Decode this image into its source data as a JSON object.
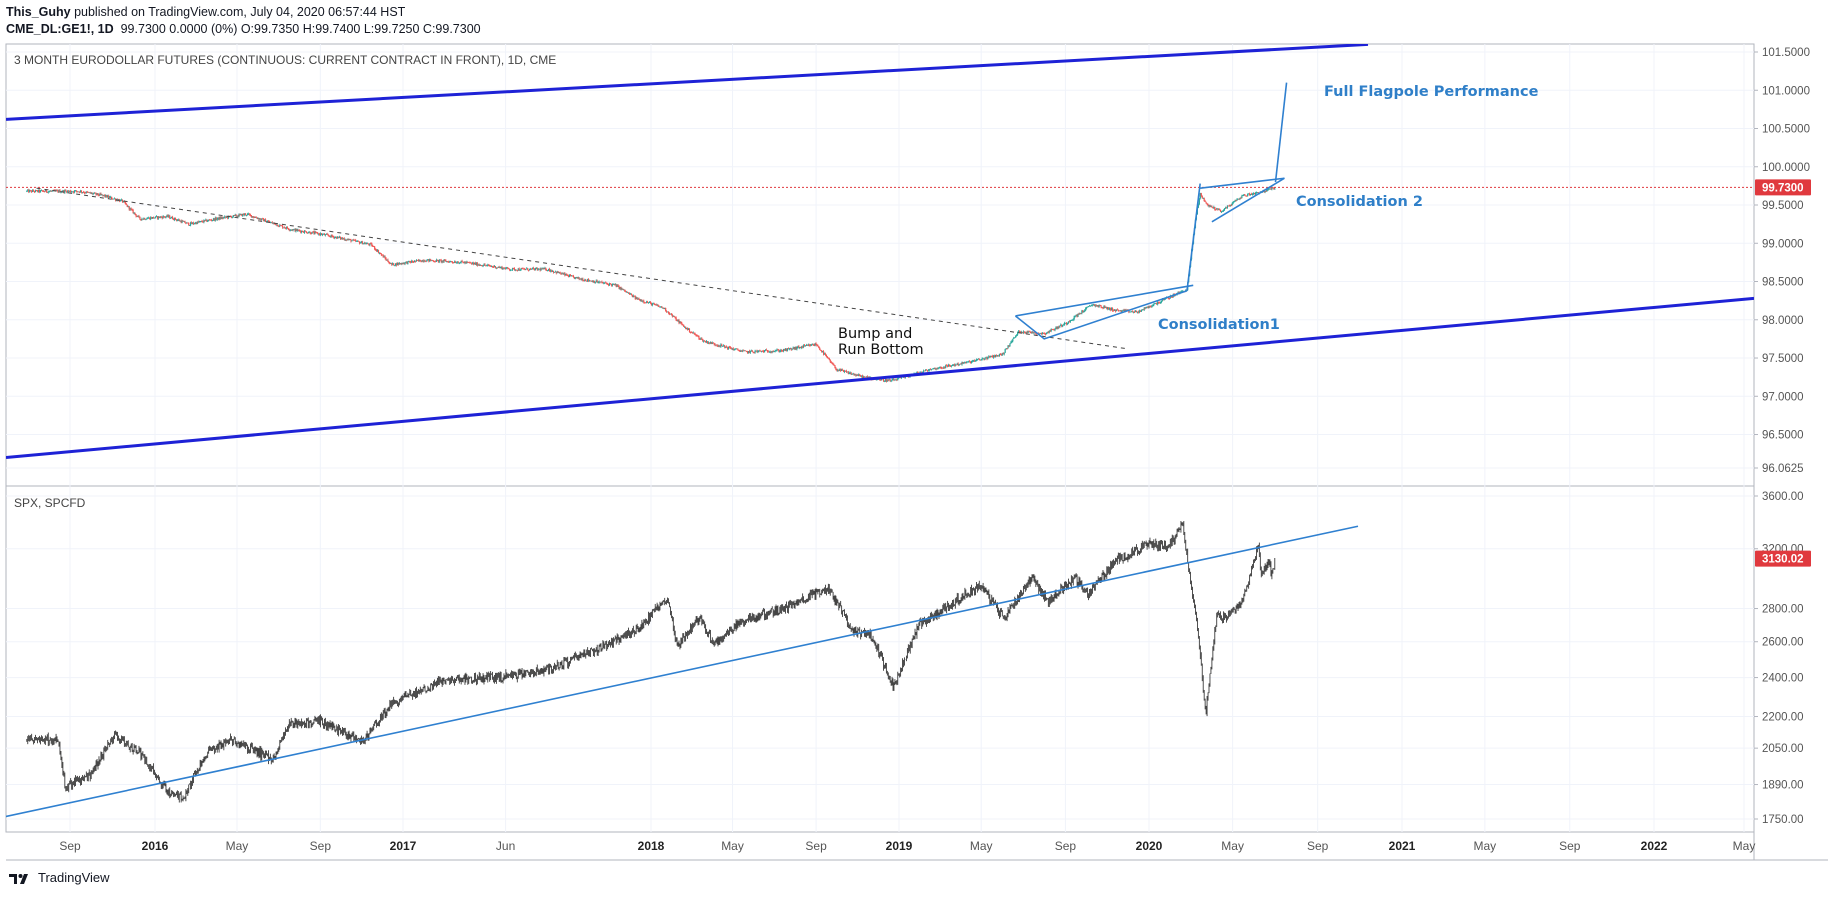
{
  "header": {
    "author": "This_Guhy",
    "published_text": "published on TradingView.com, July 04, 2020 06:57:44 HST",
    "symbol": "CME_DL:GE1!, 1D",
    "ohlc": "99.7300 0.0000 (0%) O:99.7350 H:99.7400 L:99.7250 C:99.7300"
  },
  "footer": {
    "brand": "TradingView"
  },
  "chart_data": [
    {
      "type": "candlestick",
      "title": "3 MONTH EURODOLLAR FUTURES (CONTINUOUS: CURRENT CONTRACT IN FRONT), 1D, CME",
      "y_ticks": [
        "101.5000",
        "101.0000",
        "100.5000",
        "100.0000",
        "99.5000",
        "99.0000",
        "98.5000",
        "98.0000",
        "97.5000",
        "97.0000",
        "96.5000",
        "96.0625"
      ],
      "ylim": [
        95.95,
        101.55
      ],
      "last_price_label": "99.7300",
      "last_price": 99.73,
      "x_start": "2015-07-01",
      "price_path": [
        [
          "2015-07-01",
          99.68
        ],
        [
          "2015-09-15",
          99.68
        ],
        [
          "2015-10-20",
          99.62
        ],
        [
          "2015-11-15",
          99.55
        ],
        [
          "2015-12-10",
          99.32
        ],
        [
          "2016-01-20",
          99.35
        ],
        [
          "2016-02-20",
          99.25
        ],
        [
          "2016-04-01",
          99.32
        ],
        [
          "2016-05-15",
          99.38
        ],
        [
          "2016-06-10",
          99.3
        ],
        [
          "2016-07-20",
          99.18
        ],
        [
          "2016-09-01",
          99.12
        ],
        [
          "2016-10-10",
          99.05
        ],
        [
          "2016-11-15",
          98.98
        ],
        [
          "2016-12-15",
          98.72
        ],
        [
          "2017-02-01",
          98.78
        ],
        [
          "2017-04-01",
          98.75
        ],
        [
          "2017-06-10",
          98.66
        ],
        [
          "2017-08-01",
          98.66
        ],
        [
          "2017-09-10",
          98.55
        ],
        [
          "2017-11-10",
          98.45
        ],
        [
          "2017-12-10",
          98.28
        ],
        [
          "2018-01-20",
          98.15
        ],
        [
          "2018-02-20",
          97.9
        ],
        [
          "2018-03-20",
          97.72
        ],
        [
          "2018-05-01",
          97.62
        ],
        [
          "2018-05-20",
          97.58
        ],
        [
          "2018-07-15",
          97.6
        ],
        [
          "2018-09-01",
          97.68
        ],
        [
          "2018-10-01",
          97.35
        ],
        [
          "2018-11-10",
          97.25
        ],
        [
          "2018-12-20",
          97.2
        ],
        [
          "2019-02-15",
          97.35
        ],
        [
          "2019-04-15",
          97.45
        ],
        [
          "2019-06-01",
          97.55
        ],
        [
          "2019-06-25",
          97.85
        ],
        [
          "2019-08-01",
          97.82
        ],
        [
          "2019-09-01",
          97.95
        ],
        [
          "2019-10-10",
          98.2
        ],
        [
          "2019-11-15",
          98.12
        ],
        [
          "2019-12-15",
          98.1
        ],
        [
          "2020-01-20",
          98.25
        ],
        [
          "2020-02-25",
          98.4
        ],
        [
          "2020-03-08",
          99.3
        ],
        [
          "2020-03-15",
          99.65
        ],
        [
          "2020-03-25",
          99.5
        ],
        [
          "2020-04-15",
          99.42
        ],
        [
          "2020-05-15",
          99.62
        ],
        [
          "2020-06-15",
          99.68
        ],
        [
          "2020-07-02",
          99.73
        ]
      ]
    },
    {
      "type": "candlestick",
      "title": "SPX, SPCFD",
      "y_ticks": [
        "3600.00",
        "3200.00",
        "2800.00",
        "2600.00",
        "2400.00",
        "2200.00",
        "2050.00",
        "1890.00",
        "1750.00"
      ],
      "ylim": [
        1710,
        3660
      ],
      "last_price_label": "3130.02",
      "last_price": 3130.02,
      "price_path": [
        [
          "2015-07-01",
          2090
        ],
        [
          "2015-08-15",
          2090
        ],
        [
          "2015-08-25",
          1880
        ],
        [
          "2015-09-30",
          1930
        ],
        [
          "2015-11-03",
          2110
        ],
        [
          "2015-12-10",
          2030
        ],
        [
          "2016-01-20",
          1860
        ],
        [
          "2016-02-11",
          1830
        ],
        [
          "2016-03-15",
          2020
        ],
        [
          "2016-04-20",
          2090
        ],
        [
          "2016-06-24",
          2000
        ],
        [
          "2016-07-15",
          2160
        ],
        [
          "2016-09-01",
          2175
        ],
        [
          "2016-11-04",
          2085
        ],
        [
          "2016-12-15",
          2260
        ],
        [
          "2017-03-01",
          2390
        ],
        [
          "2017-05-15",
          2400
        ],
        [
          "2017-06-30",
          2420
        ],
        [
          "2017-08-15",
          2460
        ],
        [
          "2017-10-15",
          2560
        ],
        [
          "2017-12-15",
          2680
        ],
        [
          "2018-01-26",
          2870
        ],
        [
          "2018-02-08",
          2580
        ],
        [
          "2018-03-15",
          2750
        ],
        [
          "2018-04-02",
          2580
        ],
        [
          "2018-05-15",
          2720
        ],
        [
          "2018-07-15",
          2800
        ],
        [
          "2018-09-20",
          2930
        ],
        [
          "2018-10-25",
          2660
        ],
        [
          "2018-11-20",
          2640
        ],
        [
          "2018-12-24",
          2350
        ],
        [
          "2019-01-31",
          2700
        ],
        [
          "2019-03-15",
          2820
        ],
        [
          "2019-04-30",
          2950
        ],
        [
          "2019-06-03",
          2740
        ],
        [
          "2019-07-15",
          3010
        ],
        [
          "2019-08-05",
          2840
        ],
        [
          "2019-09-15",
          3000
        ],
        [
          "2019-10-03",
          2890
        ],
        [
          "2019-11-15",
          3120
        ],
        [
          "2019-12-31",
          3230
        ],
        [
          "2020-01-31",
          3225
        ],
        [
          "2020-02-19",
          3390
        ],
        [
          "2020-03-01",
          2960
        ],
        [
          "2020-03-10",
          2740
        ],
        [
          "2020-03-23",
          2200
        ],
        [
          "2020-04-08",
          2760
        ],
        [
          "2020-04-21",
          2740
        ],
        [
          "2020-05-14",
          2830
        ],
        [
          "2020-06-08",
          3230
        ],
        [
          "2020-06-11",
          3000
        ],
        [
          "2020-06-23",
          3130
        ],
        [
          "2020-06-26",
          3010
        ],
        [
          "2020-07-02",
          3130
        ]
      ]
    }
  ],
  "x_axis_labels": [
    {
      "text": "Sep",
      "date": "2015-09-01",
      "bold": false
    },
    {
      "text": "2016",
      "date": "2016-01-01",
      "bold": true
    },
    {
      "text": "May",
      "date": "2016-05-01",
      "bold": false
    },
    {
      "text": "Sep",
      "date": "2016-09-01",
      "bold": false
    },
    {
      "text": "2017",
      "date": "2017-01-01",
      "bold": true
    },
    {
      "text": "Jun",
      "date": "2017-06-01",
      "bold": false
    },
    {
      "text": "2018",
      "date": "2018-01-01",
      "bold": true
    },
    {
      "text": "May",
      "date": "2018-05-01",
      "bold": false
    },
    {
      "text": "Sep",
      "date": "2018-09-01",
      "bold": false
    },
    {
      "text": "2019",
      "date": "2019-01-01",
      "bold": true
    },
    {
      "text": "May",
      "date": "2019-05-01",
      "bold": false
    },
    {
      "text": "Sep",
      "date": "2019-09-01",
      "bold": false
    },
    {
      "text": "2020",
      "date": "2020-01-01",
      "bold": true
    },
    {
      "text": "May",
      "date": "2020-05-01",
      "bold": false
    },
    {
      "text": "Sep",
      "date": "2020-09-01",
      "bold": false
    },
    {
      "text": "2021",
      "date": "2021-01-01",
      "bold": true
    },
    {
      "text": "May",
      "date": "2021-05-01",
      "bold": false
    },
    {
      "text": "Sep",
      "date": "2021-09-01",
      "bold": false
    },
    {
      "text": "2022",
      "date": "2022-01-01",
      "bold": true
    },
    {
      "text": "May",
      "date": "2022-05-01",
      "bold": false
    }
  ],
  "annotations": {
    "bump_and_run": [
      "Bump and",
      "Run Bottom"
    ],
    "consolidation1": "Consolidation1",
    "consolidation2": "Consolidation 2",
    "full_flagpole": "Full Flagpole Performance"
  },
  "colors": {
    "up": "#26a69a",
    "down": "#ef5350",
    "channel": "#1e22d6",
    "trend": "#2f80d0",
    "annotation": "#2f7fc8",
    "price_label_bg": "#e0393e",
    "axis_text": "#555555",
    "grid": "#f0f3fa"
  }
}
